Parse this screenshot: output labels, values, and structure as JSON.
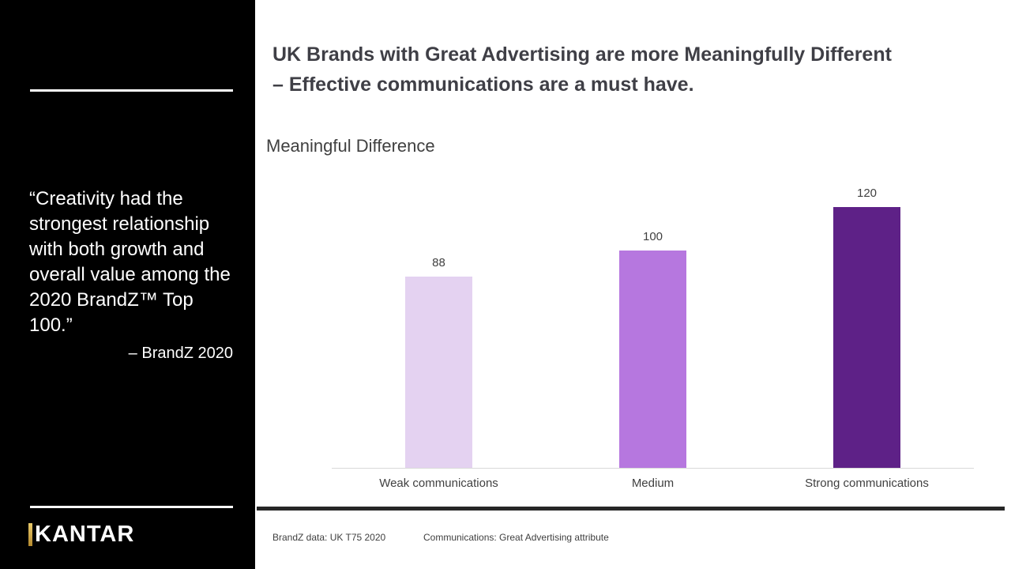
{
  "slide": {
    "title_lines": [
      "UK Brands with Great Advertising are more Meaningfully Different",
      "– Effective communications are a must have."
    ]
  },
  "sidebar": {
    "quote": "“Creativity had the strongest relationship with both growth and overall value among the 2020 BrandZ™ Top 100.”",
    "attribution": "– BrandZ 2020",
    "logo_text": "KANTAR"
  },
  "chart_data": {
    "type": "bar",
    "title": "Meaningful Difference",
    "categories": [
      "Weak communications",
      "Medium",
      "Strong communications"
    ],
    "values": [
      88,
      100,
      120
    ],
    "bar_colors": [
      "#e4d2f1",
      "#b677df",
      "#5e2187"
    ],
    "ylim": [
      0,
      130
    ],
    "grid": false,
    "legend": false,
    "data_labels": true,
    "axis_line_color": "#d9d9d9"
  },
  "footer": {
    "source": "BrandZ data: UK T75 2020",
    "note": "Communications:  Great Advertising attribute"
  },
  "theme": {
    "sidebar_bg": "#000000",
    "accent_gold": "#c9a243",
    "text_dark": "#404040",
    "separator": "#262626"
  }
}
